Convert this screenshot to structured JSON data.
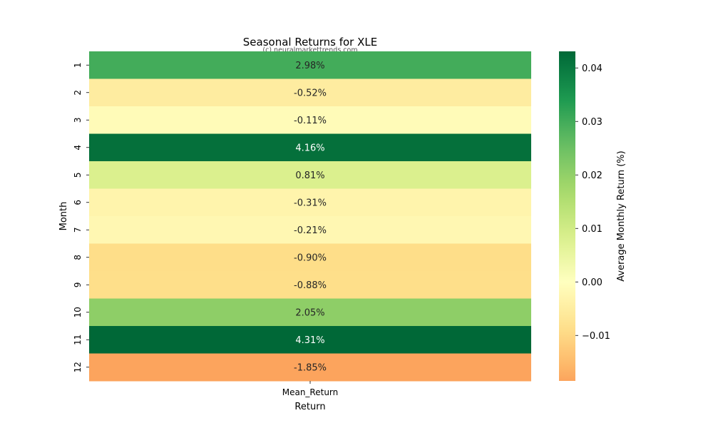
{
  "chart_data": {
    "type": "heatmap",
    "title": "Seasonal Returns for XLE",
    "watermark": "(c) neuralmarkettrends.com",
    "xlabel": "Return",
    "ylabel": "Month",
    "x_categories": [
      "Mean_Return"
    ],
    "y_categories": [
      "1",
      "2",
      "3",
      "4",
      "5",
      "6",
      "7",
      "8",
      "9",
      "10",
      "11",
      "12"
    ],
    "values": [
      0.0298,
      -0.0052,
      -0.0011,
      0.0416,
      0.0081,
      -0.0031,
      -0.0021,
      -0.009,
      -0.0088,
      0.0205,
      0.0431,
      -0.0185
    ],
    "cell_labels": [
      "2.98%",
      "-0.52%",
      "-0.11%",
      "4.16%",
      "0.81%",
      "-0.31%",
      "-0.21%",
      "-0.90%",
      "-0.88%",
      "2.05%",
      "4.31%",
      "-1.85%"
    ],
    "colorbar": {
      "label": "Average Monthly Return (%)",
      "colormap": "RdYlGn",
      "center": 0,
      "range": [
        -0.0185,
        0.0431
      ],
      "ticks": [
        0.04,
        0.03,
        0.02,
        0.01,
        0.0,
        -0.01
      ],
      "tick_labels": [
        "0.04",
        "0.03",
        "0.02",
        "0.01",
        "0.00",
        "−0.01"
      ]
    },
    "grid": false,
    "legend": "colorbar-right"
  }
}
